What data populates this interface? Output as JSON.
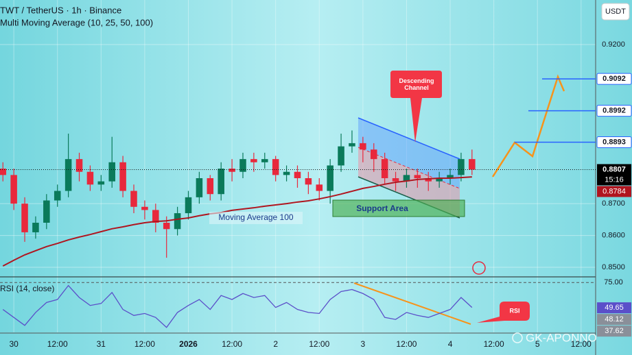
{
  "chart_data": {
    "type": "candlestick",
    "title": "TWT / TetherUS · 1h · Binance",
    "subtitle": "Multi Moving Average (10, 25, 50, 100)",
    "y_unit": "USDT",
    "x": [
      -3,
      0,
      3,
      6,
      9,
      12,
      15,
      18,
      21,
      24,
      27,
      30,
      33,
      36,
      39,
      42,
      45,
      48,
      51,
      54,
      57,
      60,
      63,
      66,
      69,
      72,
      75,
      78,
      81,
      84,
      87,
      90,
      93,
      96,
      99,
      102,
      105,
      108,
      111,
      114,
      117,
      120,
      123,
      126
    ],
    "open": [
      0.881,
      0.879,
      0.87,
      0.861,
      0.864,
      0.871,
      0.874,
      0.884,
      0.88,
      0.876,
      0.877,
      0.883,
      0.874,
      0.869,
      0.868,
      0.864,
      0.862,
      0.867,
      0.872,
      0.878,
      0.873,
      0.881,
      0.88,
      0.884,
      0.883,
      0.884,
      0.879,
      0.88,
      0.878,
      0.876,
      0.874,
      0.882,
      0.888,
      0.889,
      0.887,
      0.884,
      0.878,
      0.877,
      0.879,
      0.878,
      0.877,
      0.878,
      0.879,
      0.884
    ],
    "high": [
      0.883,
      0.881,
      0.872,
      0.866,
      0.873,
      0.876,
      0.892,
      0.886,
      0.882,
      0.879,
      0.891,
      0.885,
      0.876,
      0.871,
      0.87,
      0.866,
      0.869,
      0.874,
      0.88,
      0.879,
      0.883,
      0.884,
      0.886,
      0.886,
      0.886,
      0.885,
      0.882,
      0.882,
      0.88,
      0.878,
      0.884,
      0.892,
      0.893,
      0.891,
      0.889,
      0.886,
      0.88,
      0.881,
      0.881,
      0.88,
      0.88,
      0.881,
      0.886,
      0.887
    ],
    "low": [
      0.877,
      0.868,
      0.858,
      0.859,
      0.862,
      0.869,
      0.872,
      0.877,
      0.874,
      0.874,
      0.875,
      0.872,
      0.867,
      0.865,
      0.861,
      0.853,
      0.86,
      0.865,
      0.87,
      0.871,
      0.871,
      0.877,
      0.878,
      0.88,
      0.881,
      0.877,
      0.877,
      0.875,
      0.873,
      0.871,
      0.87,
      0.88,
      0.886,
      0.883,
      0.88,
      0.876,
      0.874,
      0.875,
      0.875,
      0.874,
      0.875,
      0.876,
      0.877,
      0.879
    ],
    "close": [
      0.879,
      0.87,
      0.861,
      0.864,
      0.871,
      0.874,
      0.884,
      0.88,
      0.876,
      0.877,
      0.883,
      0.874,
      0.869,
      0.868,
      0.864,
      0.862,
      0.867,
      0.872,
      0.878,
      0.873,
      0.881,
      0.88,
      0.884,
      0.883,
      0.884,
      0.879,
      0.88,
      0.878,
      0.876,
      0.874,
      0.882,
      0.888,
      0.889,
      0.887,
      0.884,
      0.878,
      0.877,
      0.879,
      0.878,
      0.877,
      0.878,
      0.879,
      0.884,
      0.8807
    ],
    "up_color": "#0a7a5a",
    "down_color": "#e8283c",
    "series": [
      {
        "name": "Moving Average 100",
        "color": "#b0151f",
        "values": [
          0.8504,
          0.8522,
          0.8539,
          0.8552,
          0.8565,
          0.8575,
          0.8586,
          0.8595,
          0.8603,
          0.8612,
          0.8621,
          0.8627,
          0.8634,
          0.864,
          0.8644,
          0.8646,
          0.8651,
          0.8655,
          0.8662,
          0.8668,
          0.8672,
          0.8679,
          0.8683,
          0.8687,
          0.8692,
          0.8696,
          0.87,
          0.8705,
          0.8709,
          0.8715,
          0.8722,
          0.873,
          0.8739,
          0.8748,
          0.8754,
          0.8761,
          0.8767,
          0.8771,
          0.8776,
          0.8778,
          0.878,
          0.878,
          0.8782,
          0.8784
        ]
      }
    ],
    "xlim": [
      -3.8,
      160
    ],
    "xticks": [
      {
        "value": 0,
        "label": "30"
      },
      {
        "value": 12,
        "label": "12:00"
      },
      {
        "value": 24,
        "label": "31"
      },
      {
        "value": 36,
        "label": "12:00"
      },
      {
        "value": 48,
        "label": "2026"
      },
      {
        "value": 60,
        "label": "12:00"
      },
      {
        "value": 72,
        "label": "2"
      },
      {
        "value": 84,
        "label": "12:00"
      },
      {
        "value": 96,
        "label": "3"
      },
      {
        "value": 108,
        "label": "12:00"
      },
      {
        "value": 120,
        "label": "4"
      },
      {
        "value": 132,
        "label": "12:00"
      },
      {
        "value": 144,
        "label": "5"
      },
      {
        "value": 156,
        "label": "12:00"
      }
    ],
    "ylim": [
      0.8472,
      0.934
    ],
    "yticks": [
      {
        "value": 0.85,
        "label": "0.8500"
      },
      {
        "value": 0.86,
        "label": "0.8600"
      },
      {
        "value": 0.87,
        "label": "0.8700"
      },
      {
        "value": 0.92,
        "label": "0.9200"
      }
    ],
    "grid": true,
    "price_levels": [
      {
        "value": 0.9092,
        "label": "0.9092"
      },
      {
        "value": 0.8992,
        "label": "0.8992"
      },
      {
        "value": 0.8893,
        "label": "0.8893"
      }
    ],
    "current_price": {
      "value": 0.8807,
      "label": "0.8807"
    },
    "countdown": "15:16",
    "ma_price": {
      "value": 0.8784,
      "label": "0.8784"
    },
    "annotations": {
      "descending_channel": "Descending Channel",
      "support_area": "Support Area"
    },
    "rsi": {
      "title": "RSI (14, close)",
      "color": "#5b4fc9",
      "values": [
        48,
        40,
        32,
        45,
        55,
        58,
        72,
        60,
        52,
        54,
        65,
        48,
        42,
        44,
        40,
        30,
        45,
        52,
        58,
        48,
        62,
        58,
        64,
        60,
        62,
        50,
        55,
        48,
        45,
        44,
        58,
        66,
        68,
        64,
        58,
        40,
        38,
        45,
        42,
        40,
        44,
        48,
        60,
        50
      ],
      "ylim": [
        25,
        80
      ],
      "yticks": [
        {
          "value": 75,
          "label": "75.00"
        }
      ],
      "labels": [
        {
          "value": 49.65,
          "label": "49.65"
        },
        {
          "value": 48.12,
          "label": "48.12"
        },
        {
          "value": 37.62,
          "label": "37.62"
        }
      ],
      "annotation": "RSI"
    },
    "watermark": "GK-APONNO"
  }
}
